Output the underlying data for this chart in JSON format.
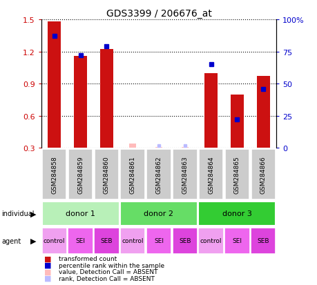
{
  "title": "GDS3399 / 206676_at",
  "samples": [
    "GSM284858",
    "GSM284859",
    "GSM284860",
    "GSM284861",
    "GSM284862",
    "GSM284863",
    "GSM284864",
    "GSM284865",
    "GSM284866"
  ],
  "red_values": [
    1.48,
    1.16,
    1.22,
    null,
    null,
    null,
    1.0,
    0.8,
    0.97
  ],
  "blue_values": [
    87,
    72,
    79,
    null,
    null,
    null,
    65,
    22,
    46
  ],
  "absent_red": [
    null,
    null,
    null,
    0.34,
    0.31,
    0.31,
    null,
    null,
    null
  ],
  "absent_blue": [
    null,
    null,
    null,
    null,
    2,
    2,
    null,
    null,
    null
  ],
  "ylim_left": [
    0.3,
    1.5
  ],
  "ylim_right": [
    0,
    100
  ],
  "yticks_left": [
    0.3,
    0.6,
    0.9,
    1.2,
    1.5
  ],
  "yticks_right": [
    0,
    25,
    50,
    75,
    100
  ],
  "ytick_labels_right": [
    "0",
    "25",
    "50",
    "75",
    "100%"
  ],
  "donors": [
    {
      "label": "donor 1",
      "start": 0,
      "end": 3,
      "color": "#b8f0b8"
    },
    {
      "label": "donor 2",
      "start": 3,
      "end": 6,
      "color": "#66dd66"
    },
    {
      "label": "donor 3",
      "start": 6,
      "end": 9,
      "color": "#33cc33"
    }
  ],
  "agents": [
    "control",
    "SEI",
    "SEB",
    "control",
    "SEI",
    "SEB",
    "control",
    "SEI",
    "SEB"
  ],
  "agent_colors": [
    "#f0a0f0",
    "#ee66ee",
    "#dd44dd",
    "#f0a0f0",
    "#ee66ee",
    "#dd44dd",
    "#f0a0f0",
    "#ee66ee",
    "#dd44dd"
  ],
  "bar_width": 0.5,
  "red_bar_color": "#cc1111",
  "blue_marker_color": "#0000cc",
  "absent_red_color": "#ffbbbb",
  "absent_blue_color": "#bbbbff",
  "bg_color": "#ffffff",
  "tick_label_color_left": "#cc0000",
  "tick_label_color_right": "#0000cc",
  "sample_box_color": "#cccccc",
  "legend_items": [
    {
      "color": "#cc1111",
      "label": "transformed count"
    },
    {
      "color": "#0000cc",
      "label": "percentile rank within the sample"
    },
    {
      "color": "#ffbbbb",
      "label": "value, Detection Call = ABSENT"
    },
    {
      "color": "#bbbbff",
      "label": "rank, Detection Call = ABSENT"
    }
  ]
}
